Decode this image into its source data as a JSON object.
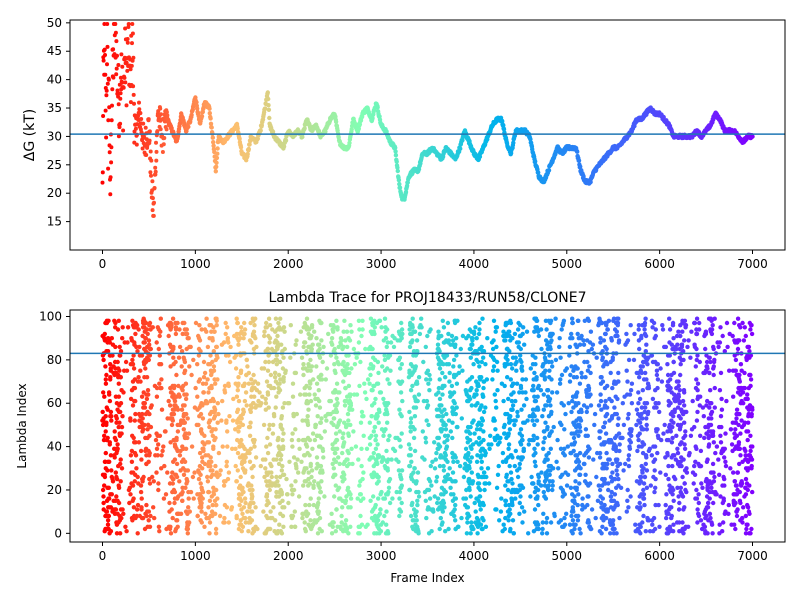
{
  "chart_data": [
    {
      "type": "scatter",
      "title": "",
      "xlabel": "",
      "ylabel": "ΔG (kT)",
      "xlim": [
        -350,
        7350
      ],
      "ylim": [
        10,
        50.5
      ],
      "xticks": [
        0,
        1000,
        2000,
        3000,
        4000,
        5000,
        6000,
        7000
      ],
      "yticks": [
        15,
        20,
        25,
        30,
        35,
        40,
        45,
        50
      ],
      "xtick_labels": [
        "0",
        "1000",
        "2000",
        "3000",
        "4000",
        "5000",
        "6000",
        "7000"
      ],
      "ytick_labels": [
        "15",
        "20",
        "25",
        "30",
        "35",
        "40",
        "45",
        "50"
      ],
      "hline": 30.4,
      "hline_color": "#1f77b4",
      "colormap": "rainbow (reversed by frame index: red at 0, violet at 7000)",
      "grid": false,
      "series": [
        {
          "x": [
            0,
            10,
            20,
            30,
            40,
            50,
            60,
            70,
            80,
            100,
            120,
            140,
            160,
            180,
            200,
            220,
            240,
            260,
            280,
            300,
            320,
            350,
            400,
            450,
            500,
            530,
            550,
            580,
            600,
            650,
            700,
            750,
            800,
            850,
            900,
            950,
            1000,
            1050,
            1100,
            1150,
            1200,
            1220,
            1250,
            1300,
            1350,
            1400,
            1450,
            1500,
            1550,
            1600,
            1650,
            1700,
            1750,
            1780,
            1800,
            1850,
            1900,
            1950,
            2000,
            2050,
            2100,
            2150,
            2200,
            2250,
            2300,
            2350,
            2400,
            2450,
            2500,
            2550,
            2600,
            2650,
            2700,
            2750,
            2800,
            2850,
            2900,
            2950,
            3000,
            3050,
            3100,
            3150,
            3200,
            3230,
            3250,
            3300,
            3350,
            3400,
            3450,
            3500,
            3550,
            3600,
            3650,
            3700,
            3750,
            3800,
            3850,
            3900,
            3950,
            4000,
            4050,
            4100,
            4150,
            4200,
            4250,
            4300,
            4350,
            4400,
            4450,
            4500,
            4550,
            4600,
            4650,
            4700,
            4750,
            4800,
            4850,
            4900,
            4950,
            5000,
            5050,
            5100,
            5150,
            5200,
            5250,
            5300,
            5350,
            5400,
            5450,
            5500,
            5550,
            5600,
            5650,
            5700,
            5750,
            5800,
            5850,
            5900,
            5950,
            6000,
            6050,
            6100,
            6150,
            6200,
            6250,
            6300,
            6350,
            6400,
            6450,
            6500,
            6550,
            6600,
            6650,
            6700,
            6750,
            6800,
            6850,
            6900,
            6950,
            7000
          ],
          "y": [
            20,
            40,
            46,
            38,
            33,
            49.5,
            29,
            43,
            17,
            36,
            45,
            49,
            40,
            35,
            42,
            36,
            44,
            41,
            46,
            38,
            48,
            30,
            34,
            28,
            32,
            21,
            16,
            29,
            34,
            30,
            33,
            31,
            29,
            34,
            31,
            33,
            37,
            32,
            36,
            35,
            28,
            24,
            30,
            29,
            30,
            31,
            32,
            27,
            26,
            30,
            29,
            31,
            35,
            38,
            32,
            30,
            29,
            28,
            31,
            30,
            31,
            30,
            33,
            31,
            32,
            30,
            31,
            33,
            34,
            29,
            28,
            28,
            33,
            31,
            34,
            35,
            33,
            36,
            32,
            31,
            29,
            28,
            21,
            19,
            19,
            23,
            24,
            24,
            27,
            27,
            28,
            27,
            26,
            28,
            27,
            26,
            28,
            31,
            29,
            27,
            26,
            28,
            30,
            32,
            33,
            33,
            29,
            27,
            31,
            31,
            31,
            30,
            26,
            23,
            22,
            24,
            26,
            28,
            27,
            28,
            28,
            28,
            24,
            22,
            22,
            24,
            25,
            26,
            27,
            28,
            28,
            29,
            30,
            31,
            33,
            33,
            34,
            35,
            34,
            34,
            33,
            32,
            30,
            30,
            30,
            30,
            30,
            31,
            30,
            31,
            32,
            34,
            33,
            31,
            31,
            31,
            30,
            29,
            30,
            30
          ]
        }
      ]
    },
    {
      "type": "scatter",
      "title": "Lambda Trace for PROJ18433/RUN58/CLONE7",
      "xlabel": "Frame Index",
      "ylabel": "Lambda Index",
      "xlim": [
        -350,
        7350
      ],
      "ylim": [
        -4,
        103
      ],
      "xticks": [
        0,
        1000,
        2000,
        3000,
        4000,
        5000,
        6000,
        7000
      ],
      "yticks": [
        0,
        20,
        40,
        60,
        80,
        100
      ],
      "xtick_labels": [
        "0",
        "1000",
        "2000",
        "3000",
        "4000",
        "5000",
        "6000",
        "7000"
      ],
      "ytick_labels": [
        "0",
        "20",
        "40",
        "60",
        "80",
        "100"
      ],
      "hline": 83,
      "hline_color": "#1f77b4",
      "colormap": "rainbow (reversed by frame index: red at 0, violet at 7000)",
      "grid": false,
      "series": [
        {
          "x_range": [
            0,
            7000
          ],
          "y_range": [
            0,
            99
          ],
          "note_density": "dense columns of points spanning lambda 0–99 across frames"
        }
      ]
    }
  ]
}
